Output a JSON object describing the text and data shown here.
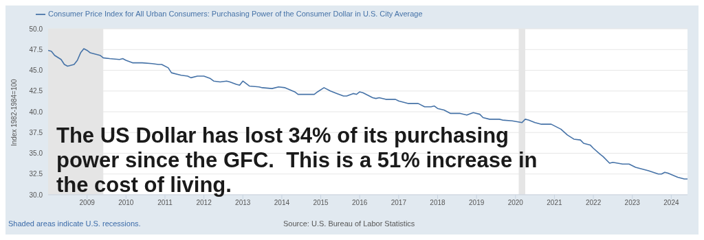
{
  "chart_data": {
    "type": "line",
    "ylabel": "Index 1982-1984=100",
    "annotations": [
      "The US Dollar has lost 34% of its purchasing power since the GFC.  This is a 51% increase in the cost of living.",
      "Shaded areas indicate U.S. recessions.",
      "Source: U.S. Bureau of Labor Statistics"
    ],
    "x": [
      "2008-01",
      "2008-02",
      "2008-03",
      "2008-05",
      "2008-06",
      "2008-07",
      "2008-09",
      "2008-10",
      "2008-11",
      "2008-12",
      "2009-01",
      "2009-02",
      "2009-05",
      "2009-06",
      "2009-08",
      "2009-11",
      "2009-12",
      "2010-01",
      "2010-03",
      "2010-06",
      "2010-09",
      "2010-11",
      "2010-12",
      "2011-02",
      "2011-03",
      "2011-06",
      "2011-08",
      "2011-09",
      "2011-11",
      "2012-01",
      "2012-03",
      "2012-04",
      "2012-06",
      "2012-08",
      "2012-09",
      "2012-11",
      "2012-12",
      "2013-01",
      "2013-03",
      "2013-06",
      "2013-07",
      "2013-10",
      "2013-12",
      "2014-02",
      "2014-05",
      "2014-06",
      "2014-11",
      "2014-12",
      "2015-02",
      "2015-04",
      "2015-06",
      "2015-08",
      "2015-09",
      "2015-11",
      "2015-12",
      "2016-01",
      "2016-02",
      "2016-05",
      "2016-06",
      "2016-07",
      "2016-09",
      "2016-12",
      "2017-01",
      "2017-04",
      "2017-05",
      "2017-07",
      "2017-09",
      "2017-11",
      "2017-12",
      "2018-01",
      "2018-03",
      "2018-05",
      "2018-08",
      "2018-10",
      "2018-12",
      "2019-02",
      "2019-03",
      "2019-05",
      "2019-08",
      "2019-09",
      "2019-12",
      "2020-03",
      "2020-04",
      "2020-05",
      "2020-07",
      "2020-09",
      "2020-12",
      "2021-03",
      "2021-05",
      "2021-07",
      "2021-09",
      "2021-10",
      "2021-12",
      "2022-01",
      "2022-03",
      "2022-04",
      "2022-06",
      "2022-07",
      "2022-10",
      "2022-12",
      "2023-02",
      "2023-06",
      "2023-09",
      "2023-10",
      "2023-11",
      "2023-12",
      "2024-03",
      "2024-05",
      "2024-06"
    ],
    "series": [
      {
        "name": "Consumer Price Index for All Urban Consumers: Purchasing Power of the Consumer Dollar in U.S. City Average",
        "color": "#4572a7",
        "values": [
          47.4,
          47.3,
          46.8,
          46.3,
          45.7,
          45.5,
          45.7,
          46.2,
          47.1,
          47.6,
          47.4,
          47.1,
          46.8,
          46.5,
          46.4,
          46.3,
          46.4,
          46.2,
          45.9,
          45.9,
          45.8,
          45.7,
          45.7,
          45.3,
          44.7,
          44.4,
          44.3,
          44.1,
          44.3,
          44.3,
          44.0,
          43.7,
          43.6,
          43.7,
          43.6,
          43.3,
          43.2,
          43.7,
          43.1,
          43.0,
          42.9,
          42.8,
          43.0,
          42.9,
          42.4,
          42.1,
          42.1,
          42.4,
          42.9,
          42.5,
          42.2,
          41.9,
          41.9,
          42.2,
          42.1,
          42.4,
          42.3,
          41.7,
          41.6,
          41.7,
          41.5,
          41.5,
          41.3,
          41.0,
          41.0,
          41.0,
          40.6,
          40.6,
          40.7,
          40.4,
          40.2,
          39.8,
          39.8,
          39.6,
          39.9,
          39.7,
          39.3,
          39.1,
          39.1,
          39.0,
          38.9,
          38.7,
          39.1,
          39.0,
          38.7,
          38.5,
          38.5,
          37.9,
          37.2,
          36.7,
          36.6,
          36.2,
          36.0,
          35.6,
          34.9,
          34.6,
          33.8,
          33.9,
          33.7,
          33.7,
          33.3,
          32.9,
          32.5,
          32.5,
          32.7,
          32.6,
          32.1,
          31.9,
          31.9
        ]
      }
    ],
    "xlim": [
      "2008-01",
      "2024-06"
    ],
    "xticks": [
      "2009",
      "2010",
      "2011",
      "2012",
      "2013",
      "2014",
      "2015",
      "2016",
      "2017",
      "2018",
      "2019",
      "2020",
      "2021",
      "2022",
      "2023",
      "2024"
    ],
    "ylim": [
      30,
      50
    ],
    "yticks": [
      {
        "value": 30,
        "label": "30.0"
      },
      {
        "value": 32.5,
        "label": "32.5"
      },
      {
        "value": 35,
        "label": "35.0"
      },
      {
        "value": 37.5,
        "label": "37.5"
      },
      {
        "value": 40,
        "label": "40.0"
      },
      {
        "value": 42.5,
        "label": "42.5"
      },
      {
        "value": 45,
        "label": "45.0"
      },
      {
        "value": 47.5,
        "label": "47.5"
      },
      {
        "value": 50,
        "label": "50.0"
      }
    ],
    "bands": [
      {
        "axis": "x",
        "from": "2008-01",
        "to": "2009-06",
        "color": "#e5e5e5"
      },
      {
        "axis": "x",
        "from": "2020-02",
        "to": "2020-04",
        "color": "#e5e5e5"
      }
    ],
    "grid": "y",
    "legend": "top",
    "marker": "none",
    "line_style": "solid"
  }
}
